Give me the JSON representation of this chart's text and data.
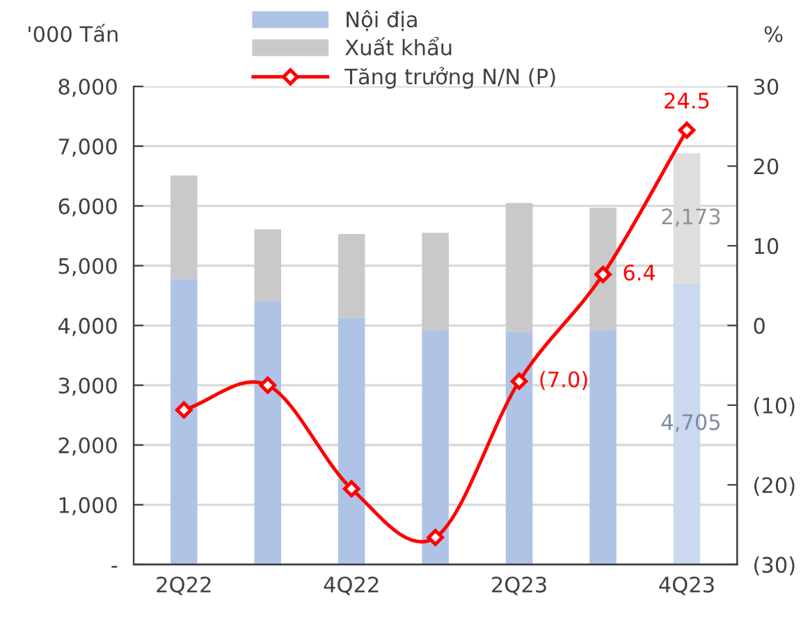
{
  "chart_data": {
    "type": "bar",
    "stacked": true,
    "categories": [
      "2Q22",
      null,
      "4Q22",
      null,
      "2Q23",
      null,
      "4Q23"
    ],
    "ylabel": "'000 Tấn",
    "y2label": "%",
    "ylim": [
      0,
      8000
    ],
    "yticks": [
      {
        "value": 0,
        "label": "-"
      },
      {
        "value": 1000,
        "label": "1,000"
      },
      {
        "value": 2000,
        "label": "2,000"
      },
      {
        "value": 3000,
        "label": "3,000"
      },
      {
        "value": 4000,
        "label": "4,000"
      },
      {
        "value": 5000,
        "label": "5,000"
      },
      {
        "value": 6000,
        "label": "6,000"
      },
      {
        "value": 7000,
        "label": "7,000"
      },
      {
        "value": 8000,
        "label": "8,000"
      }
    ],
    "y2lim": [
      -30,
      30
    ],
    "y2ticks": [
      {
        "value": -30,
        "label": "(30)"
      },
      {
        "value": -20,
        "label": "(20)"
      },
      {
        "value": -10,
        "label": "(10)"
      },
      0,
      10,
      20,
      30
    ],
    "grid": "y",
    "legend": "top",
    "series": [
      {
        "name": "Nội địa",
        "color": "#aec3e6",
        "colors": [
          "#aec3e6",
          "#aec3e6",
          "#aec3e6",
          "#aec3e6",
          "#aec3e6",
          "#aec3e6",
          "#cbd9f0"
        ],
        "values": [
          4780,
          4400,
          4130,
          3930,
          3890,
          3930,
          4705
        ],
        "value_labels": [
          null,
          null,
          null,
          null,
          null,
          null,
          "4,705"
        ]
      },
      {
        "name": "Xuất khẩu",
        "color": "#c9c9c9",
        "colors": [
          "#c9c9c9",
          "#c9c9c9",
          "#c9c9c9",
          "#c9c9c9",
          "#c9c9c9",
          "#c9c9c9",
          "#dedede"
        ],
        "values": [
          1730,
          1210,
          1400,
          1620,
          2160,
          2040,
          2173
        ],
        "value_labels": [
          null,
          null,
          null,
          null,
          null,
          null,
          "2,173"
        ]
      },
      {
        "name": "Tăng trưởng N/N (P)",
        "type": "line",
        "axis": "y2",
        "color": "#ff0000",
        "marker": "diamond",
        "values": [
          -10.6,
          -7.5,
          -20.5,
          -26.6,
          -7.0,
          6.4,
          24.5
        ],
        "value_labels": [
          null,
          null,
          null,
          null,
          "(7.0)",
          "6.4",
          "24.5"
        ]
      }
    ]
  }
}
